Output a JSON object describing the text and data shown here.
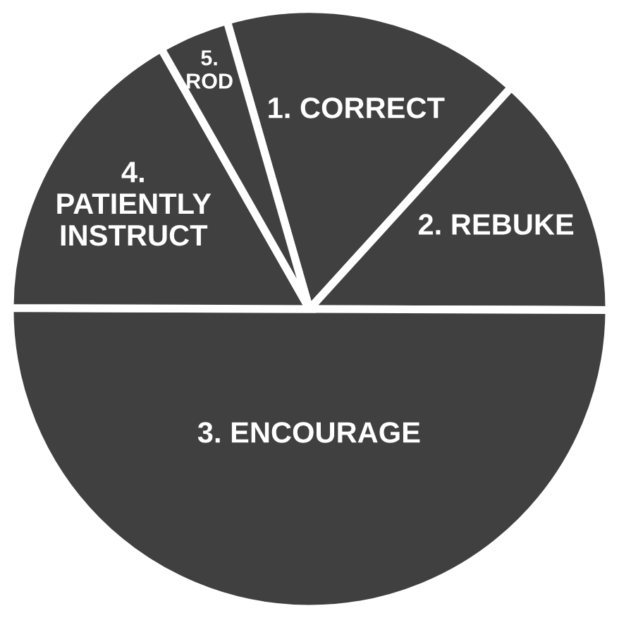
{
  "chart_data": {
    "type": "pie",
    "categories": [
      "1. CORRECT",
      "2. REBUKE",
      "3. ENCOURAGE",
      "4.\nPATIENTLY\nINSTRUCT",
      "5.\nROD"
    ],
    "values": [
      16.2,
      13.3,
      50,
      16.7,
      3.8
    ],
    "colors": [
      "#404040",
      "#404040",
      "#404040",
      "#404040",
      "#404040"
    ],
    "legend": false
  }
}
